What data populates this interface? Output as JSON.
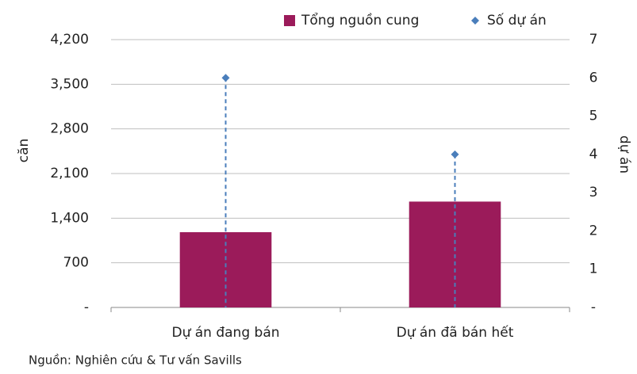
{
  "chart_data": {
    "type": "bar",
    "categories": [
      "Dự án đang bán",
      "Dự án đã bán hết"
    ],
    "series": [
      {
        "name": "Tổng nguồn cung",
        "type": "bar",
        "color": "#9b1b5a",
        "values": [
          1180,
          1660
        ]
      },
      {
        "name": "Số dự án",
        "type": "marker",
        "axis": "y2",
        "color": "#4a7ebb",
        "values": [
          6,
          4
        ]
      }
    ],
    "ylabel": "căn",
    "y2label": "dự án",
    "ylim": [
      0,
      4200
    ],
    "yticks": [
      {
        "value": 0,
        "label": "-"
      },
      700,
      {
        "value": 1400,
        "label": "1,400"
      },
      {
        "value": 2100,
        "label": "2,100"
      },
      {
        "value": 2800,
        "label": "2,800"
      },
      {
        "value": 3500,
        "label": "3,500"
      },
      {
        "value": 4200,
        "label": "4,200"
      }
    ],
    "y2lim": [
      0,
      7
    ],
    "y2ticks": [
      {
        "value": 0,
        "label": "-"
      },
      1,
      2,
      3,
      4,
      5,
      6,
      7
    ],
    "grid": true,
    "legend": "top",
    "source": "Nguồn: Nghiên cứu & Tư vấn Savills"
  }
}
